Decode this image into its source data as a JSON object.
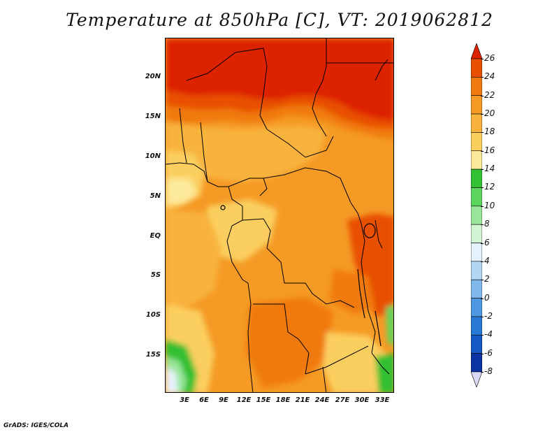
{
  "title": "Temperature at 850hPa [C], VT: 2019062812",
  "credit": "GrADS: IGES/COLA",
  "map": {
    "lat_labels": [
      "20N",
      "15N",
      "10N",
      "5N",
      "EQ",
      "5S",
      "10S",
      "15S"
    ],
    "lon_labels": [
      "3E",
      "6E",
      "9E",
      "12E",
      "15E",
      "18E",
      "21E",
      "24E",
      "27E",
      "30E",
      "33E"
    ]
  },
  "colorbar": {
    "labels": [
      "26",
      "24",
      "22",
      "20",
      "18",
      "16",
      "14",
      "12",
      "10",
      "8",
      "6",
      "4",
      "2",
      "0",
      "-2",
      "-4",
      "-6",
      "-8"
    ],
    "colors": [
      "#dd2200",
      "#e85000",
      "#f07a10",
      "#f59a25",
      "#f8b33c",
      "#fbcf5e",
      "#fde99a",
      "#33c033",
      "#5cd65c",
      "#99e699",
      "#d3f5d3",
      "#e6f2fb",
      "#b3d6f2",
      "#80b8eb",
      "#4d98e0",
      "#2878d6",
      "#1558c6",
      "#0a32a0",
      "#0a1a70"
    ],
    "top_arrow_color": "#dd2200",
    "bottom_arrow_color": "#d9d9f5"
  }
}
